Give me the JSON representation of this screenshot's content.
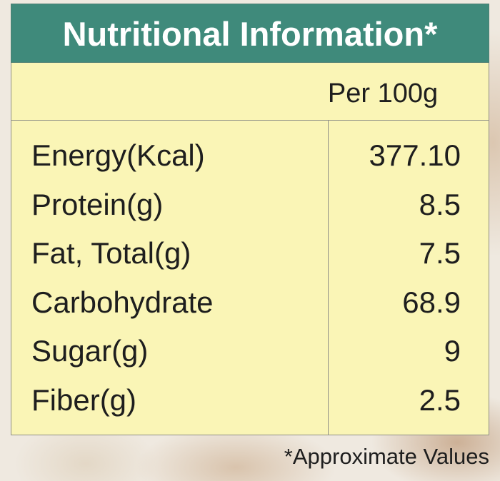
{
  "header": {
    "title": "Nutritional Information*"
  },
  "table": {
    "column_header": "Per 100g",
    "rows": [
      [
        "Energy(Kcal)",
        "377.10"
      ],
      [
        "Protein(g)",
        "8.5"
      ],
      [
        "Fat, Total(g)",
        "7.5"
      ],
      [
        "Carbohydrate",
        "68.9"
      ],
      [
        "Sugar(g)",
        "9"
      ],
      [
        "Fiber(g)",
        "2.5"
      ]
    ]
  },
  "footnote": "*Approximate Values"
}
